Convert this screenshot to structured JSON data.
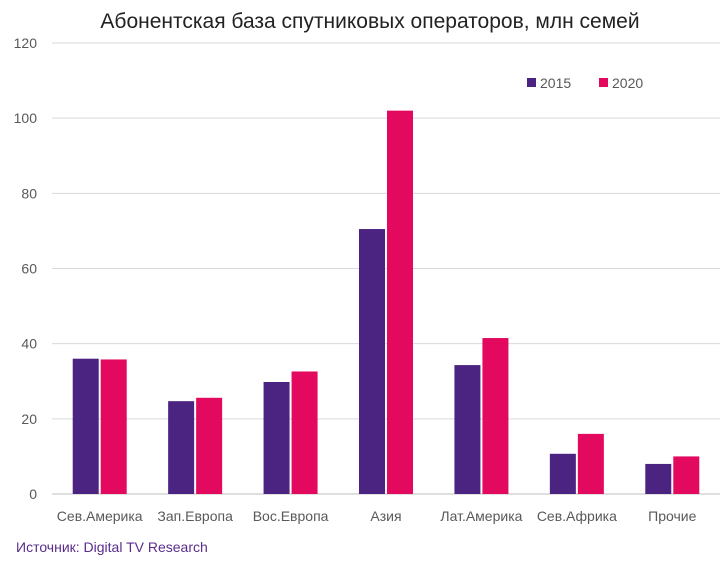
{
  "chart_data": {
    "type": "bar",
    "title": "Абонентская база спутниковых операторов, млн семей",
    "xlabel": "",
    "ylabel": "",
    "ylim": [
      0,
      120
    ],
    "yticks": [
      "0",
      "20",
      "40",
      "60",
      "80",
      "100",
      "120"
    ],
    "grid": true,
    "legend_position": "top-right",
    "categories": [
      "Сев.Америка",
      "Зап.Европа",
      "Вос.Европа",
      "Азия",
      "Лат.Америка",
      "Сев.Африка",
      "Прочие"
    ],
    "series": [
      {
        "name": "2015",
        "color": "#4b2380",
        "values": [
          36,
          24.7,
          29.8,
          70.5,
          34.3,
          10.7,
          8
        ]
      },
      {
        "name": "2020",
        "color": "#e2095e",
        "values": [
          35.8,
          25.6,
          32.6,
          102,
          41.5,
          16,
          10
        ]
      }
    ],
    "source": "Источник: Digital TV Research"
  }
}
